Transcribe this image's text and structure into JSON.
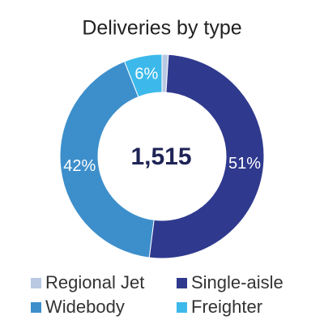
{
  "chart_data": {
    "type": "pie",
    "title": "Deliveries by type",
    "center_label": "1,515",
    "categories": [
      "Regional Jet",
      "Single-aisle",
      "Widebody",
      "Freighter"
    ],
    "values": [
      1,
      51,
      42,
      6
    ],
    "value_labels": [
      null,
      "51%",
      "42%",
      "6%"
    ],
    "colors": [
      "#b9c9e2",
      "#2f3a8e",
      "#3d8fcb",
      "#3cb9ea"
    ]
  }
}
